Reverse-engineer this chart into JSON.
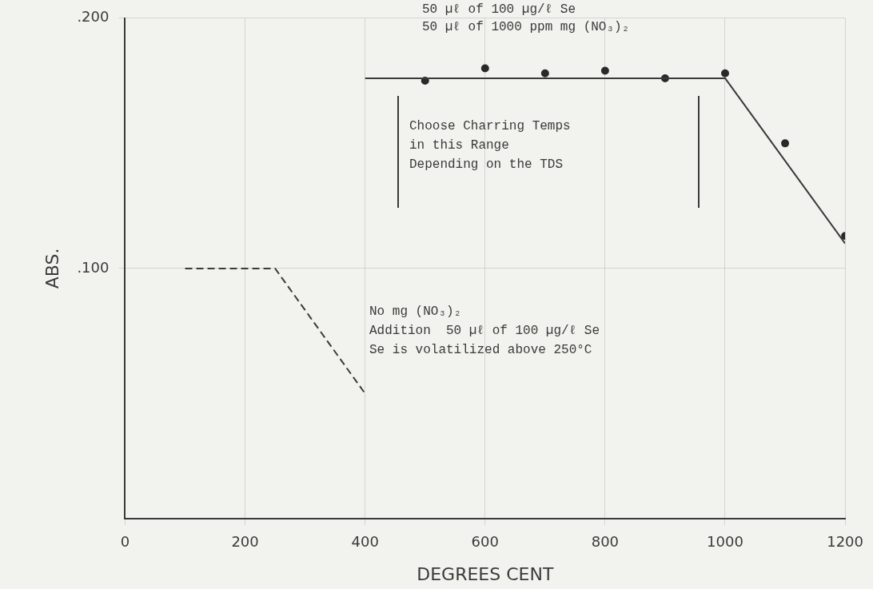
{
  "chart_data": {
    "type": "line",
    "xlabel": "DEGREES CENT",
    "ylabel": "ABS.",
    "xlim": [
      0,
      1200
    ],
    "xticks": [
      0,
      200,
      400,
      600,
      800,
      1000,
      1200
    ],
    "ylim": [
      0,
      0.2
    ],
    "yticks": [
      {
        "value": 0.1,
        "label": ".100"
      },
      {
        "value": 0.2,
        "label": ".200"
      }
    ],
    "grid": true,
    "legend": false,
    "series": [
      {
        "type": "line",
        "color": "#3a3a3a",
        "x": [
          400,
          1000,
          1200
        ],
        "values": [
          0.176,
          0.176,
          0.11
        ],
        "marker": "none",
        "line_style": "solid"
      },
      {
        "type": "scatter",
        "color": "#2a2a2a",
        "x": [
          500,
          600,
          700,
          800,
          900,
          1000,
          1100,
          1200
        ],
        "values": [
          0.175,
          0.18,
          0.178,
          0.179,
          0.176,
          0.178,
          0.15,
          0.113
        ],
        "marker": "circle"
      },
      {
        "type": "line",
        "color": "#3a3a3a",
        "x": [
          100,
          250,
          400
        ],
        "values": [
          0.1,
          0.1,
          0.05
        ],
        "marker": "none",
        "line_style": "dashed"
      }
    ],
    "annotations": [
      "Choose Charring Temps\nin this Range\nDepending on the TDS",
      "50 µℓ of 100 µg/ℓ Se",
      "50 µℓ of 1000 ppm mg (NO₃)₂",
      "No mg (NO₃)₂",
      "Addition  50 µℓ of 100 µg/ℓ Se",
      "Se is volatilized above 250°C"
    ]
  }
}
